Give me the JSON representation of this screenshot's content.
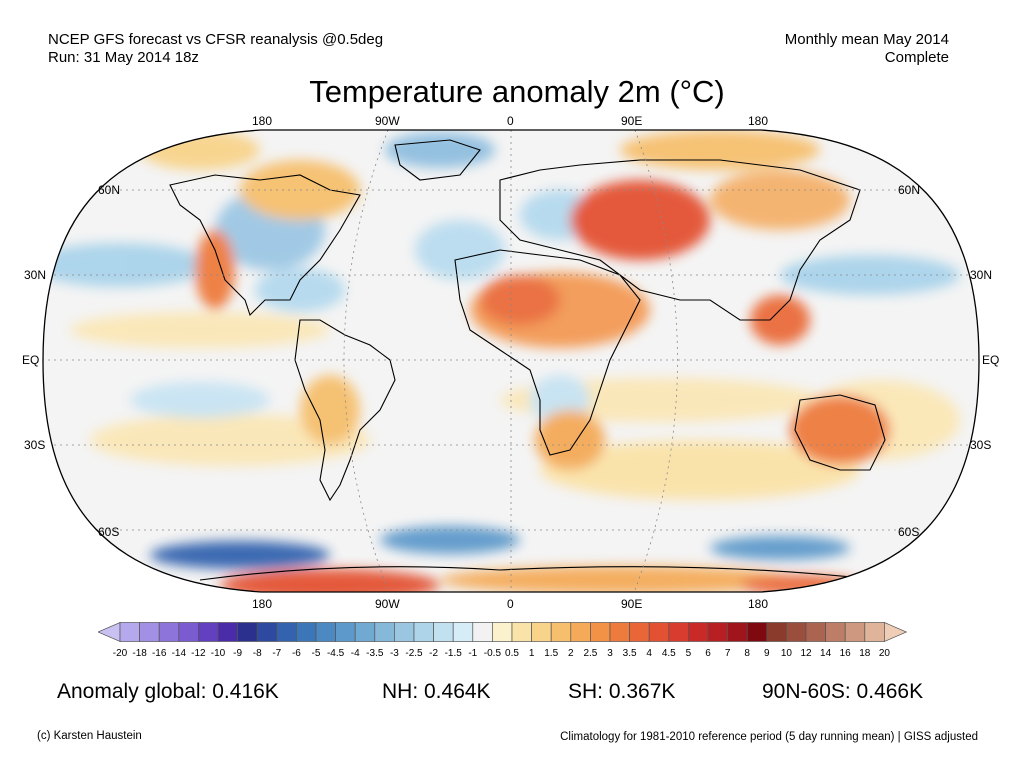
{
  "header": {
    "left_line1": "NCEP GFS forecast vs CFSR reanalysis @0.5deg",
    "left_line2": "Run: 31 May 2014 18z",
    "right_line1": "Monthly mean May 2014",
    "right_line2": "Complete"
  },
  "title": "Temperature anomaly 2m (°C)",
  "map": {
    "longitude_labels": [
      "180",
      "90W",
      "0",
      "90E",
      "180"
    ],
    "latitude_labels": [
      "60N",
      "30N",
      "EQ",
      "30S",
      "60S"
    ]
  },
  "colorbar": {
    "labels": [
      "-20",
      "-18",
      "-16",
      "-14",
      "-12",
      "-10",
      "-9",
      "-8",
      "-7",
      "-6",
      "-5",
      "-4.5",
      "-4",
      "-3.5",
      "-3",
      "-2.5",
      "-2",
      "-1.5",
      "-1",
      "-0.5",
      "0.5",
      "1",
      "1.5",
      "2",
      "2.5",
      "3",
      "3.5",
      "4",
      "4.5",
      "5",
      "6",
      "7",
      "8",
      "9",
      "10",
      "12",
      "14",
      "16",
      "18",
      "20"
    ],
    "colors": [
      "#c9c1f2",
      "#b6a8ec",
      "#a290e4",
      "#8c74da",
      "#7a5bd0",
      "#6240bf",
      "#4a2ba8",
      "#2b2f8e",
      "#2e4aa0",
      "#3362ae",
      "#3b76b8",
      "#4c88c2",
      "#5d99ca",
      "#70a9d2",
      "#86b8da",
      "#9ac6e2",
      "#aed4ea",
      "#c1e1f1",
      "#d6ecf7",
      "#f2f2f2",
      "#fbf1cd",
      "#f9e3a8",
      "#f8d38a",
      "#f6bf6d",
      "#f4aa58",
      "#f19247",
      "#ee7b3e",
      "#e96638",
      "#e35133",
      "#d83c2e",
      "#c92a27",
      "#b81f22",
      "#a0141b",
      "#7e0a10",
      "#8a3b2c",
      "#9a4e3b",
      "#ab6450",
      "#bd7d67",
      "#ce977f",
      "#e0b39b",
      "#efcdb6"
    ]
  },
  "stats": {
    "global": "Anomaly global: 0.416K",
    "nh": "NH: 0.464K",
    "sh": "SH: 0.367K",
    "arctic": "90N-60S: 0.466K"
  },
  "footer": {
    "left": "(c) Karsten Haustein",
    "right": "Climatology for 1981-2010 reference period (5 day running mean) | GISS adjusted"
  }
}
